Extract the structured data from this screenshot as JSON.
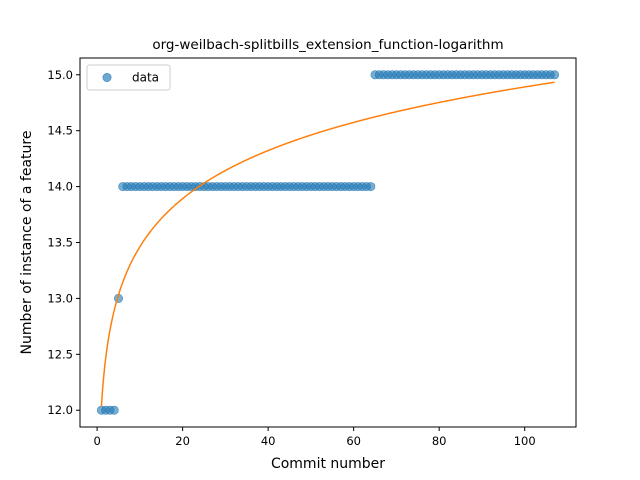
{
  "chart_data": {
    "type": "scatter",
    "title": "org-weilbach-splitbills_extension_function-logarithm",
    "xlabel": "Commit number",
    "ylabel": "Number of instance of a feature",
    "xlim": [
      -4,
      112
    ],
    "ylim": [
      11.85,
      15.15
    ],
    "xticks": [
      0,
      20,
      40,
      60,
      80,
      100
    ],
    "xtick_labels": [
      "0",
      "20",
      "40",
      "60",
      "80",
      "100"
    ],
    "yticks": [
      12.0,
      12.5,
      13.0,
      13.5,
      14.0,
      14.5,
      15.0
    ],
    "ytick_labels": [
      "12.0",
      "12.5",
      "13.0",
      "13.5",
      "14.0",
      "14.5",
      "15.0"
    ],
    "legend": {
      "position": "upper-left",
      "entries": [
        "data"
      ]
    },
    "series": [
      {
        "name": "data",
        "kind": "scatter",
        "color": "#1f77b4",
        "groups": [
          {
            "x_from": 1,
            "x_to": 4,
            "y": 12
          },
          {
            "x_from": 5,
            "x_to": 5,
            "y": 13
          },
          {
            "x_from": 6,
            "x_to": 64,
            "y": 14
          },
          {
            "x_from": 65,
            "x_to": 107,
            "y": 15
          }
        ]
      },
      {
        "kind": "line",
        "color": "#ff7f0e",
        "x_range": [
          1,
          107
        ],
        "model": "logarithmic",
        "curve": [
          [
            1,
            12.0
          ],
          [
            5,
            13.05
          ],
          [
            10,
            13.5
          ],
          [
            20,
            13.9
          ],
          [
            25,
            14.03
          ],
          [
            40,
            14.32
          ],
          [
            60,
            14.57
          ],
          [
            80,
            14.74
          ],
          [
            107,
            14.92
          ]
        ]
      }
    ]
  }
}
